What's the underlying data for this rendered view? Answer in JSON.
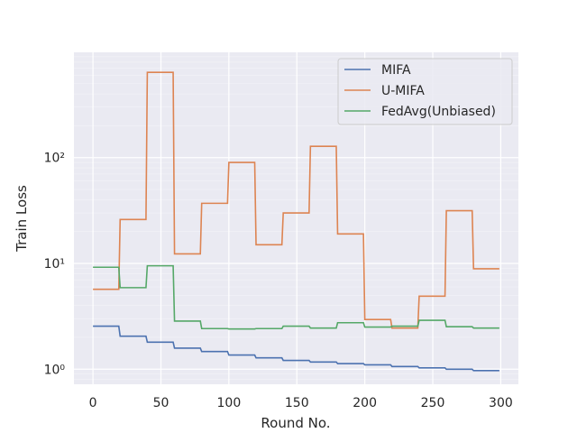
{
  "chart_data": {
    "type": "line",
    "title": "",
    "xlabel": "Round No.",
    "ylabel": "Train Loss",
    "xlim": [
      -14,
      313
    ],
    "ylim": [
      0.72,
      990
    ],
    "yscale": "log",
    "grid": true,
    "legend_position": "top-right",
    "x_ticks": [
      0,
      50,
      100,
      150,
      200,
      250,
      300
    ],
    "x_tick_labels": [
      "0",
      "50",
      "100",
      "150",
      "200",
      "250",
      "300"
    ],
    "y_ticks": [
      1,
      10,
      100
    ],
    "y_tick_labels": [
      "10⁰",
      "10¹",
      "10²"
    ],
    "background_color": "#eaeaf2",
    "grid_color": "#ffffff",
    "series": [
      {
        "name": "MIFA",
        "color": "#4c72b0",
        "x": [
          0,
          19,
          20,
          39,
          40,
          59,
          60,
          79,
          80,
          99,
          100,
          119,
          120,
          139,
          140,
          159,
          160,
          179,
          180,
          199,
          200,
          219,
          220,
          239,
          240,
          259,
          260,
          279,
          280,
          299
        ],
        "y": [
          2.55,
          2.55,
          2.05,
          2.05,
          1.8,
          1.8,
          1.58,
          1.58,
          1.47,
          1.47,
          1.36,
          1.36,
          1.28,
          1.28,
          1.21,
          1.21,
          1.17,
          1.17,
          1.13,
          1.13,
          1.1,
          1.1,
          1.06,
          1.06,
          1.03,
          1.03,
          1.0,
          1.0,
          0.97,
          0.97
        ]
      },
      {
        "name": "U-MIFA",
        "color": "#dd8452",
        "x": [
          0,
          19,
          20,
          39,
          40,
          59,
          60,
          79,
          80,
          99,
          100,
          119,
          120,
          139,
          140,
          159,
          160,
          179,
          180,
          199,
          200,
          219,
          220,
          239,
          240,
          259,
          260,
          279,
          280,
          299
        ],
        "y": [
          5.7,
          5.7,
          26,
          26,
          640,
          640,
          12.3,
          12.3,
          37,
          37,
          90,
          90,
          15,
          15,
          30,
          30,
          128,
          128,
          19,
          19,
          2.95,
          2.95,
          2.45,
          2.45,
          4.9,
          4.9,
          31.5,
          31.5,
          8.9,
          8.9
        ]
      },
      {
        "name": "FedAvg(Unbiased)",
        "color": "#55a868",
        "x": [
          0,
          19,
          20,
          39,
          40,
          59,
          60,
          79,
          80,
          99,
          100,
          119,
          120,
          139,
          140,
          159,
          160,
          179,
          180,
          199,
          200,
          219,
          220,
          239,
          240,
          259,
          260,
          279,
          280,
          299
        ],
        "y": [
          9.2,
          9.2,
          5.9,
          5.9,
          9.5,
          9.5,
          2.85,
          2.85,
          2.42,
          2.42,
          2.4,
          2.4,
          2.42,
          2.42,
          2.55,
          2.55,
          2.45,
          2.45,
          2.75,
          2.75,
          2.5,
          2.5,
          2.55,
          2.55,
          2.9,
          2.9,
          2.52,
          2.52,
          2.45,
          2.45
        ]
      }
    ]
  }
}
